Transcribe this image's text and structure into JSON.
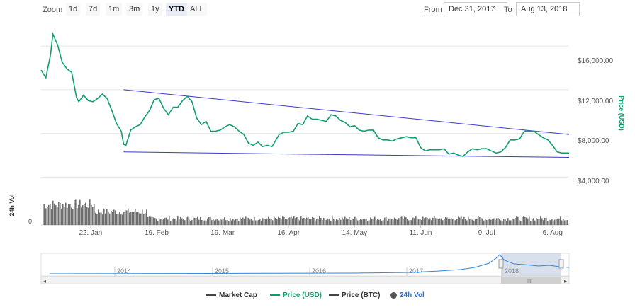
{
  "toolbar": {
    "zoom_label": "Zoom",
    "buttons": [
      "1d",
      "7d",
      "1m",
      "3m",
      "1y",
      "YTD",
      "ALL"
    ],
    "active": "YTD",
    "from_label": "From",
    "from_value": "Dec 31, 2017",
    "to_label": "To",
    "to_value": "Aug 13, 2018"
  },
  "legend": {
    "market_cap": "Market Cap",
    "price_usd": "Price (USD)",
    "price_btc": "Price (BTC)",
    "vol_24h": "24h Vol"
  },
  "colors": {
    "price": "#0e9f6e",
    "trend": "#3a3acf",
    "volume": "#555555",
    "navigator_line": "#2e86de",
    "navigator_sel": "#b8c6e0",
    "grid": "#e6e6e6",
    "market_cap": "#434348",
    "price_btc": "#434348",
    "vol_dot": "#555555"
  },
  "chart_data": {
    "type": "line",
    "title": "",
    "ylabel": "Price (USD)",
    "ylim": [
      3500,
      17500
    ],
    "y_ticks": [
      "$4,000.00",
      "$8,000.00",
      "$12,000.00",
      "$16,000.00"
    ],
    "y_tick_values": [
      4000,
      8000,
      12000,
      16000
    ],
    "x_range": [
      "2018-01-01",
      "2018-08-13"
    ],
    "x_ticks": [
      "22. Jan",
      "19. Feb",
      "19. Mar",
      "16. Apr",
      "14. May",
      "11. Jun",
      "9. Jul",
      "6. Aug"
    ],
    "x_tick_dates": [
      "2018-01-22",
      "2018-02-19",
      "2018-03-19",
      "2018-04-16",
      "2018-05-14",
      "2018-06-11",
      "2018-07-09",
      "2018-08-06"
    ],
    "grid": true,
    "legend_position": "bottom-center",
    "series": [
      {
        "name": "Price (USD)",
        "x": [
          "2018-01-01",
          "2018-01-03",
          "2018-01-05",
          "2018-01-06",
          "2018-01-08",
          "2018-01-10",
          "2018-01-12",
          "2018-01-14",
          "2018-01-16",
          "2018-01-17",
          "2018-01-19",
          "2018-01-21",
          "2018-01-23",
          "2018-01-25",
          "2018-01-27",
          "2018-01-29",
          "2018-01-31",
          "2018-02-02",
          "2018-02-04",
          "2018-02-05",
          "2018-02-06",
          "2018-02-08",
          "2018-02-10",
          "2018-02-12",
          "2018-02-14",
          "2018-02-16",
          "2018-02-18",
          "2018-02-20",
          "2018-02-22",
          "2018-02-24",
          "2018-02-26",
          "2018-02-28",
          "2018-03-02",
          "2018-03-04",
          "2018-03-06",
          "2018-03-08",
          "2018-03-10",
          "2018-03-12",
          "2018-03-14",
          "2018-03-16",
          "2018-03-18",
          "2018-03-20",
          "2018-03-22",
          "2018-03-24",
          "2018-03-26",
          "2018-03-28",
          "2018-03-30",
          "2018-04-01",
          "2018-04-03",
          "2018-04-05",
          "2018-04-07",
          "2018-04-09",
          "2018-04-12",
          "2018-04-14",
          "2018-04-16",
          "2018-04-18",
          "2018-04-20",
          "2018-04-22",
          "2018-04-24",
          "2018-04-26",
          "2018-04-28",
          "2018-04-30",
          "2018-05-02",
          "2018-05-04",
          "2018-05-06",
          "2018-05-08",
          "2018-05-10",
          "2018-05-12",
          "2018-05-14",
          "2018-05-16",
          "2018-05-18",
          "2018-05-20",
          "2018-05-22",
          "2018-05-24",
          "2018-05-26",
          "2018-05-28",
          "2018-05-30",
          "2018-06-01",
          "2018-06-03",
          "2018-06-05",
          "2018-06-07",
          "2018-06-09",
          "2018-06-11",
          "2018-06-13",
          "2018-06-15",
          "2018-06-17",
          "2018-06-19",
          "2018-06-21",
          "2018-06-23",
          "2018-06-25",
          "2018-06-27",
          "2018-06-29",
          "2018-07-01",
          "2018-07-03",
          "2018-07-05",
          "2018-07-07",
          "2018-07-09",
          "2018-07-11",
          "2018-07-13",
          "2018-07-15",
          "2018-07-17",
          "2018-07-19",
          "2018-07-21",
          "2018-07-23",
          "2018-07-25",
          "2018-07-27",
          "2018-07-29",
          "2018-07-31",
          "2018-08-02",
          "2018-08-04",
          "2018-08-06",
          "2018-08-08",
          "2018-08-10",
          "2018-08-12",
          "2018-08-13"
        ],
        "values": [
          13800,
          13100,
          15200,
          17100,
          16100,
          14500,
          13900,
          13600,
          11300,
          10900,
          11500,
          11000,
          10900,
          11200,
          11600,
          11200,
          10100,
          8900,
          8200,
          7000,
          6900,
          8300,
          8600,
          8800,
          9500,
          10100,
          11100,
          11200,
          10300,
          9700,
          10400,
          10400,
          11000,
          11400,
          10900,
          9400,
          8800,
          9100,
          8200,
          8200,
          8300,
          8600,
          8800,
          8600,
          8200,
          7900,
          7100,
          6900,
          7200,
          6800,
          6900,
          6800,
          7900,
          8100,
          8100,
          8200,
          8900,
          8800,
          9600,
          9300,
          9300,
          9200,
          9100,
          9700,
          9600,
          9200,
          9000,
          8600,
          8700,
          8300,
          8200,
          8300,
          8300,
          7600,
          7400,
          7400,
          7300,
          7500,
          7600,
          7700,
          7600,
          7600,
          6700,
          6400,
          6500,
          6500,
          6500,
          6600,
          6100,
          6200,
          6000,
          5900,
          6300,
          6600,
          6500,
          6600,
          6600,
          6400,
          6200,
          6300,
          6700,
          7400,
          7400,
          7500,
          8200,
          8200,
          8200,
          7900,
          7600,
          7400,
          6900,
          6300,
          6200,
          6200,
          6200
        ]
      }
    ],
    "trendlines": [
      {
        "name": "upper",
        "x": [
          "2018-02-05",
          "2018-08-13"
        ],
        "y": [
          12000,
          7900
        ]
      },
      {
        "name": "lower",
        "x": [
          "2018-02-05",
          "2018-08-13"
        ],
        "y": [
          6300,
          5800
        ]
      }
    ],
    "volume": {
      "axis_label": "24h Vol",
      "axis_tick": "0"
    },
    "navigator": {
      "x_labels": [
        "2014",
        "2015",
        "2016",
        "2017",
        "2018"
      ],
      "selected_range": [
        "2018-01-01",
        "2018-08-13"
      ]
    }
  }
}
